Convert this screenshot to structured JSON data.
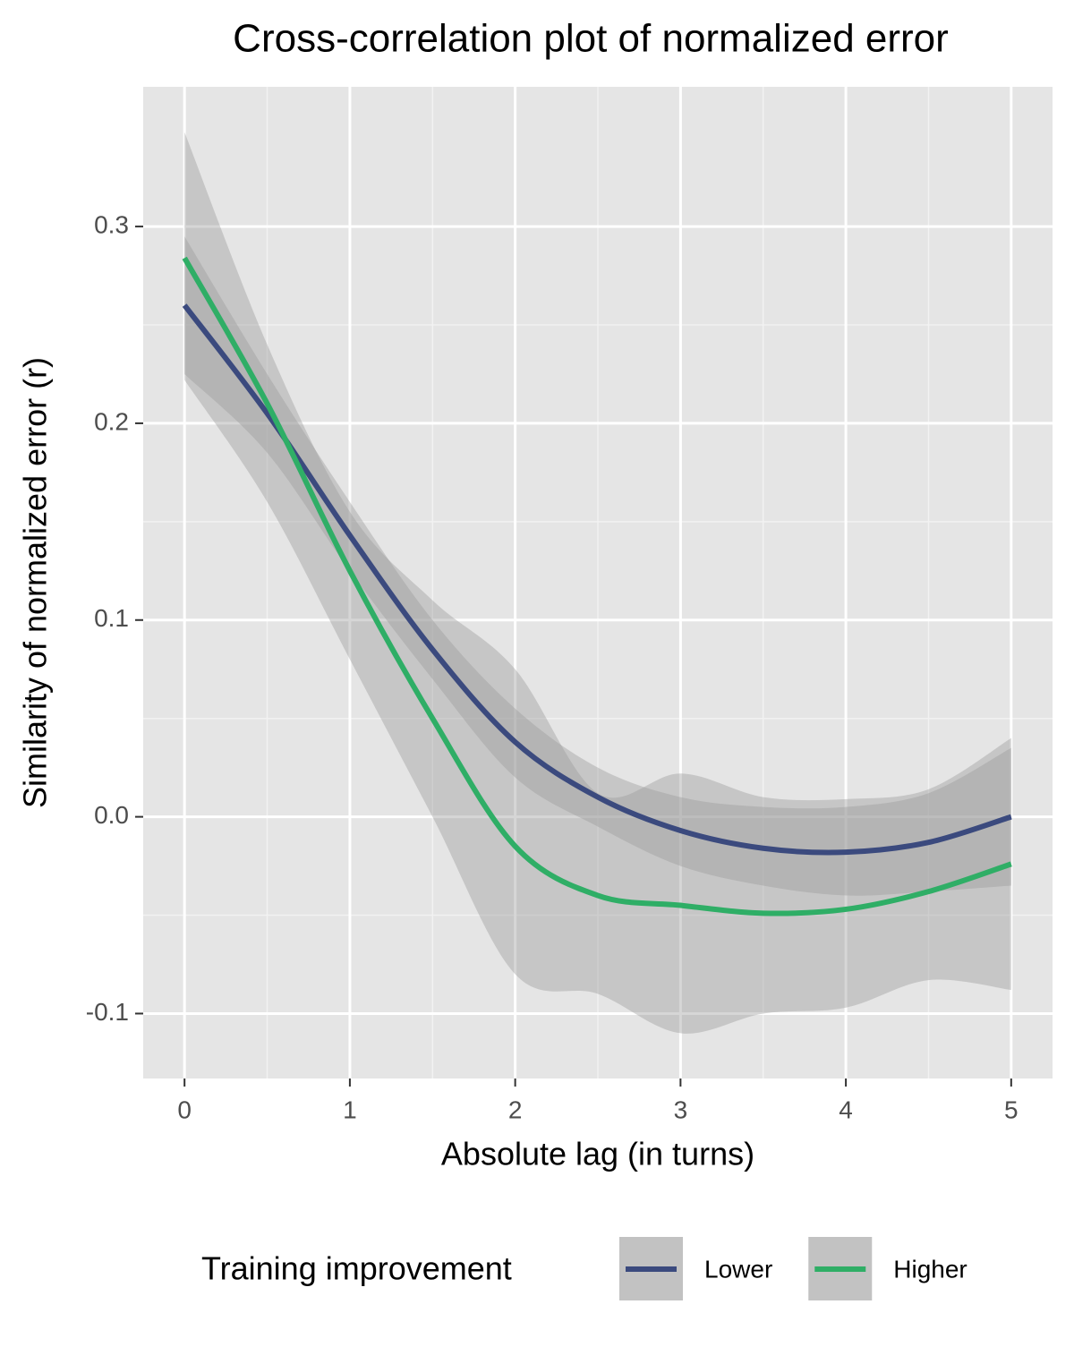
{
  "chart_data": {
    "type": "line",
    "title": "Cross-correlation plot of normalized error",
    "x_label": "Absolute lag (in turns)",
    "y_label": "Similarity of normalized error (r)",
    "x": [
      0,
      0.5,
      1,
      1.5,
      2,
      2.5,
      3,
      3.5,
      4,
      4.5,
      5
    ],
    "series": [
      {
        "name": "Lower",
        "color": "#3b4a7e",
        "values": [
          0.26,
          0.205,
          0.143,
          0.085,
          0.038,
          0.01,
          -0.007,
          -0.016,
          -0.018,
          -0.013,
          0.0
        ],
        "upper": [
          0.295,
          0.225,
          0.16,
          0.1,
          0.055,
          0.025,
          0.01,
          0.005,
          0.005,
          0.012,
          0.035
        ],
        "lower": [
          0.225,
          0.185,
          0.125,
          0.07,
          0.02,
          -0.005,
          -0.025,
          -0.035,
          -0.04,
          -0.038,
          -0.035
        ]
      },
      {
        "name": "Higher",
        "color": "#2fae66",
        "values": [
          0.284,
          0.21,
          0.125,
          0.05,
          -0.015,
          -0.04,
          -0.045,
          -0.049,
          -0.047,
          -0.038,
          -0.024
        ],
        "upper": [
          0.348,
          0.24,
          0.155,
          0.11,
          0.075,
          0.012,
          0.022,
          0.01,
          0.009,
          0.014,
          0.04
        ],
        "lower": [
          0.222,
          0.16,
          0.08,
          0.0,
          -0.08,
          -0.09,
          -0.11,
          -0.1,
          -0.097,
          -0.083,
          -0.088
        ]
      }
    ],
    "legend_title": "Training improvement",
    "legend_position": "bottom",
    "xlim": [
      -0.25,
      5.25
    ],
    "xticks": [
      0,
      1,
      2,
      3,
      4,
      5
    ],
    "ylim": [
      -0.133,
      0.371
    ],
    "yticks": [
      -0.1,
      {
        "value": 0,
        "label": "0.0"
      },
      0.1,
      0.2,
      0.3
    ],
    "grid": true
  }
}
